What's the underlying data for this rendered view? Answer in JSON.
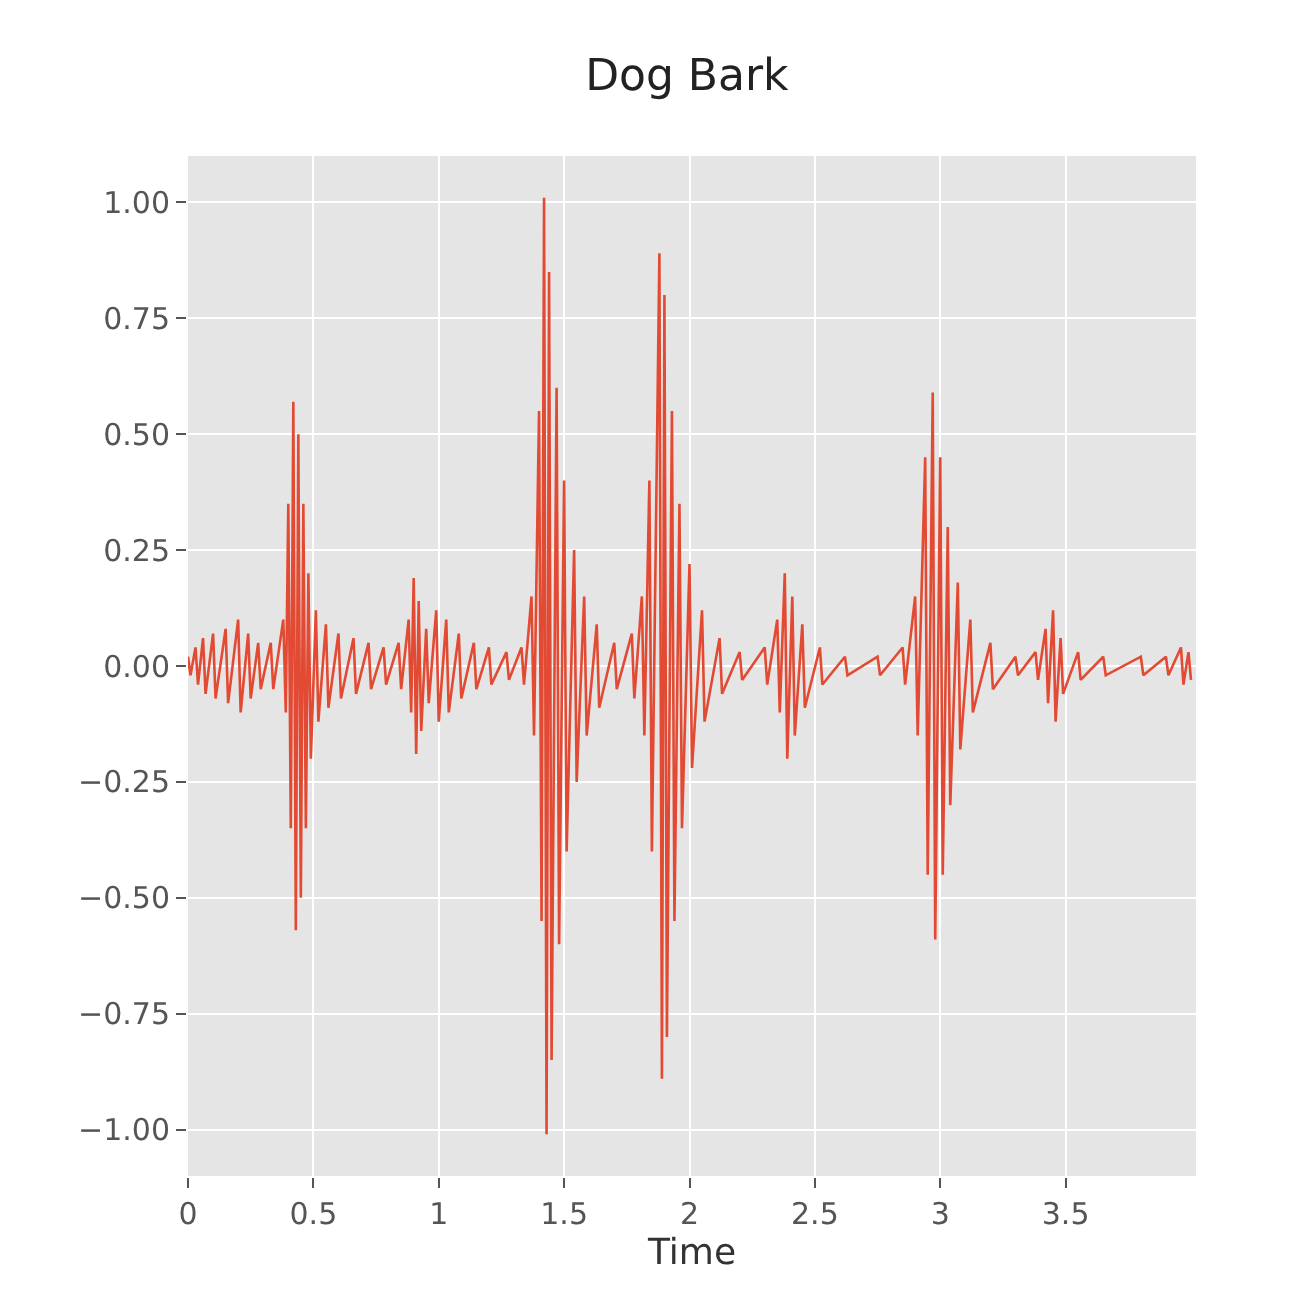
{
  "chart_data": {
    "type": "line",
    "title": "Dog Bark",
    "xlabel": "Time",
    "xlim": [
      0,
      4.02
    ],
    "xticks": [
      0,
      0.5,
      1,
      1.5,
      2,
      2.5,
      3,
      3.5
    ],
    "ylim": [
      -1.1,
      1.1
    ],
    "yticks": [
      {
        "value": -1,
        "label": "−1.00"
      },
      {
        "value": -0.75,
        "label": "−0.75"
      },
      {
        "value": -0.5,
        "label": "−0.50"
      },
      {
        "value": -0.25,
        "label": "−0.25"
      },
      {
        "value": 0,
        "label": "0.00"
      },
      {
        "value": 0.25,
        "label": "0.25"
      },
      {
        "value": 0.5,
        "label": "0.50"
      },
      {
        "value": 0.75,
        "label": "0.75"
      },
      {
        "value": 1,
        "label": "1.00"
      }
    ],
    "grid": true,
    "marker": "none",
    "line_style": "solid",
    "series": [
      {
        "color": "#e24a33",
        "x": [
          0.0,
          0.01,
          0.03,
          0.04,
          0.06,
          0.07,
          0.1,
          0.11,
          0.15,
          0.16,
          0.2,
          0.21,
          0.24,
          0.25,
          0.28,
          0.29,
          0.33,
          0.34,
          0.38,
          0.39,
          0.4,
          0.41,
          0.42,
          0.43,
          0.44,
          0.45,
          0.46,
          0.47,
          0.48,
          0.49,
          0.51,
          0.52,
          0.55,
          0.56,
          0.6,
          0.61,
          0.66,
          0.67,
          0.72,
          0.73,
          0.78,
          0.79,
          0.84,
          0.85,
          0.88,
          0.89,
          0.9,
          0.91,
          0.92,
          0.93,
          0.95,
          0.96,
          0.99,
          1.0,
          1.03,
          1.04,
          1.08,
          1.09,
          1.14,
          1.15,
          1.2,
          1.21,
          1.27,
          1.28,
          1.33,
          1.34,
          1.37,
          1.38,
          1.4,
          1.41,
          1.42,
          1.43,
          1.44,
          1.45,
          1.47,
          1.48,
          1.5,
          1.51,
          1.54,
          1.55,
          1.58,
          1.59,
          1.63,
          1.64,
          1.7,
          1.71,
          1.77,
          1.78,
          1.81,
          1.82,
          1.84,
          1.85,
          1.88,
          1.89,
          1.9,
          1.91,
          1.93,
          1.94,
          1.96,
          1.97,
          2.0,
          2.01,
          2.05,
          2.06,
          2.12,
          2.13,
          2.2,
          2.21,
          2.3,
          2.31,
          2.35,
          2.36,
          2.38,
          2.39,
          2.41,
          2.42,
          2.45,
          2.46,
          2.52,
          2.53,
          2.62,
          2.63,
          2.75,
          2.76,
          2.85,
          2.86,
          2.9,
          2.91,
          2.94,
          2.95,
          2.97,
          2.98,
          3.0,
          3.01,
          3.03,
          3.04,
          3.07,
          3.08,
          3.12,
          3.13,
          3.2,
          3.21,
          3.3,
          3.31,
          3.38,
          3.39,
          3.42,
          3.43,
          3.45,
          3.46,
          3.48,
          3.49,
          3.55,
          3.56,
          3.65,
          3.66,
          3.8,
          3.81,
          3.9,
          3.91,
          3.96,
          3.97,
          3.99,
          4.0
        ],
        "values": [
          0.02,
          -0.02,
          0.04,
          -0.04,
          0.06,
          -0.06,
          0.07,
          -0.07,
          0.08,
          -0.08,
          0.1,
          -0.1,
          0.07,
          -0.07,
          0.05,
          -0.05,
          0.05,
          -0.05,
          0.1,
          -0.1,
          0.35,
          -0.35,
          0.57,
          -0.57,
          0.5,
          -0.5,
          0.35,
          -0.35,
          0.2,
          -0.2,
          0.12,
          -0.12,
          0.09,
          -0.09,
          0.07,
          -0.07,
          0.06,
          -0.06,
          0.05,
          -0.05,
          0.04,
          -0.04,
          0.05,
          -0.05,
          0.1,
          -0.1,
          0.19,
          -0.19,
          0.14,
          -0.14,
          0.08,
          -0.08,
          0.12,
          -0.12,
          0.1,
          -0.1,
          0.07,
          -0.07,
          0.05,
          -0.05,
          0.04,
          -0.04,
          0.03,
          -0.03,
          0.04,
          -0.04,
          0.15,
          -0.15,
          0.55,
          -0.55,
          1.01,
          -1.01,
          0.85,
          -0.85,
          0.6,
          -0.6,
          0.4,
          -0.4,
          0.25,
          -0.25,
          0.15,
          -0.15,
          0.09,
          -0.09,
          0.05,
          -0.05,
          0.07,
          -0.07,
          0.15,
          -0.15,
          0.4,
          -0.4,
          0.89,
          -0.89,
          0.8,
          -0.8,
          0.55,
          -0.55,
          0.35,
          -0.35,
          0.22,
          -0.22,
          0.12,
          -0.12,
          0.06,
          -0.06,
          0.03,
          -0.03,
          0.04,
          -0.04,
          0.1,
          -0.1,
          0.2,
          -0.2,
          0.15,
          -0.15,
          0.09,
          -0.09,
          0.04,
          -0.04,
          0.02,
          -0.02,
          0.02,
          -0.02,
          0.04,
          -0.04,
          0.15,
          -0.15,
          0.45,
          -0.45,
          0.59,
          -0.59,
          0.45,
          -0.45,
          0.3,
          -0.3,
          0.18,
          -0.18,
          0.1,
          -0.1,
          0.05,
          -0.05,
          0.02,
          -0.02,
          0.03,
          -0.03,
          0.08,
          -0.08,
          0.12,
          -0.12,
          0.06,
          -0.06,
          0.03,
          -0.03,
          0.02,
          -0.02,
          0.02,
          -0.02,
          0.02,
          -0.02,
          0.04,
          -0.04,
          0.03,
          -0.03
        ]
      }
    ]
  }
}
